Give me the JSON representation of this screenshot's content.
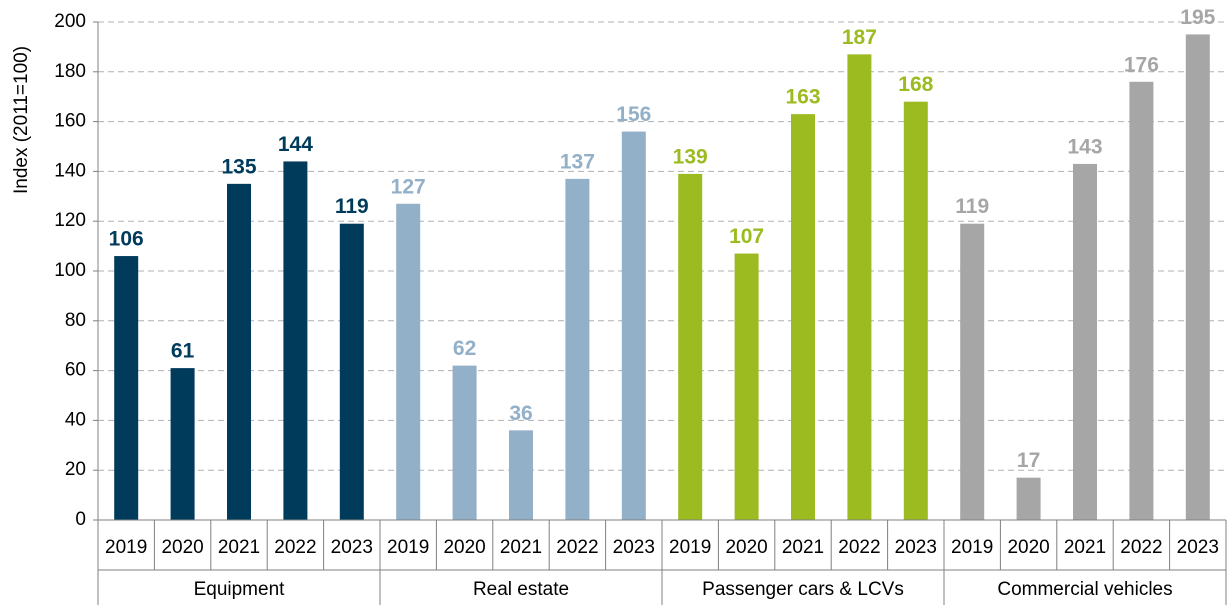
{
  "chart_data": {
    "type": "bar",
    "y_label": "Index (2011=100)",
    "categories": [
      "2019",
      "2020",
      "2021",
      "2022",
      "2023"
    ],
    "series": [
      {
        "name": "Equipment",
        "color": "#003b5c",
        "values": [
          106,
          61,
          135,
          144,
          119
        ]
      },
      {
        "name": "Real estate",
        "color": "#93b0c9",
        "values": [
          127,
          62,
          36,
          137,
          156
        ]
      },
      {
        "name": "Passenger cars & LCVs",
        "color": "#9bbb20",
        "values": [
          139,
          107,
          163,
          187,
          168
        ]
      },
      {
        "name": "Commercial vehicles",
        "color": "#a6a6a6",
        "values": [
          119,
          17,
          143,
          176,
          195
        ]
      }
    ],
    "ylim": [
      0,
      200
    ],
    "yticks": [
      0,
      20,
      40,
      60,
      80,
      100,
      120,
      140,
      160,
      180,
      200
    ],
    "grid": true
  }
}
